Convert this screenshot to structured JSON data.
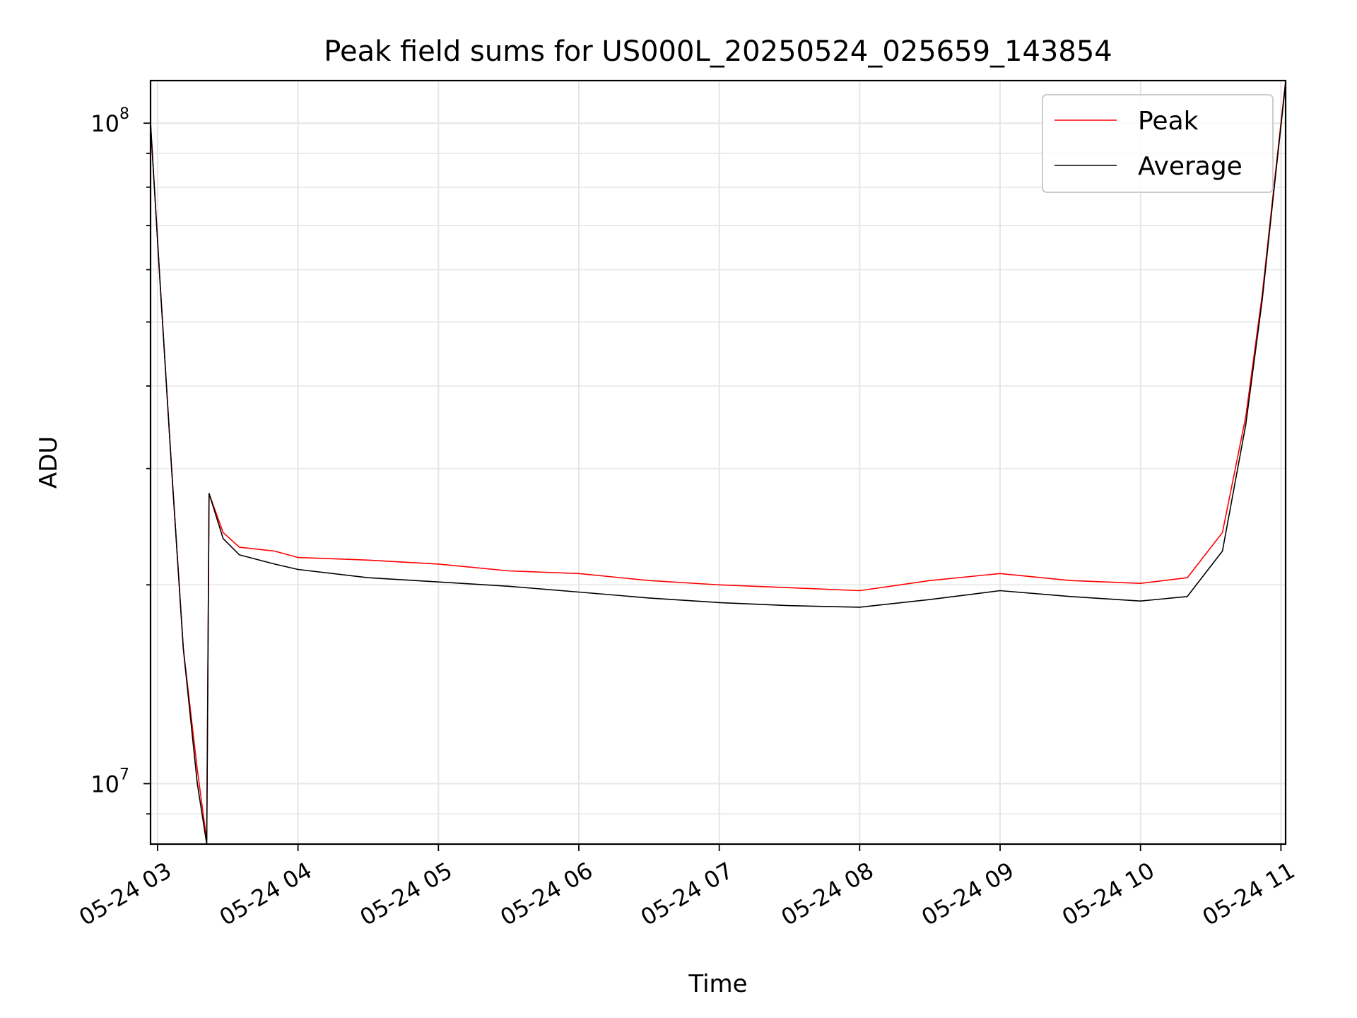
{
  "chart_data": {
    "type": "line",
    "title": "Peak field sums for US000L_20250524_025659_143854",
    "xlabel": "Time",
    "ylabel": "ADU",
    "xlim": [
      "2025-05-24 02:57",
      "2025-05-24 11:02"
    ],
    "ylim": [
      8100000,
      116000000
    ],
    "yscale": "log",
    "grid": true,
    "legend": {
      "location": "top-right"
    },
    "x_ticks": [
      "05-24 03",
      "05-24 04",
      "05-24 05",
      "05-24 06",
      "05-24 07",
      "05-24 08",
      "05-24 09",
      "05-24 10",
      "05-24 11"
    ],
    "y_ticks": [
      {
        "base": "10",
        "exp": "7",
        "value": 10000000
      },
      {
        "base": "10",
        "exp": "8",
        "value": 100000000
      }
    ],
    "series": [
      {
        "name": "Peak",
        "color": "#ff0000",
        "points": [
          [
            "2025-05-24 02:57",
            100000000
          ],
          [
            "2025-05-24 03:01",
            58000000
          ],
          [
            "2025-05-24 03:06",
            30000000
          ],
          [
            "2025-05-24 03:11",
            16000000
          ],
          [
            "2025-05-24 03:17",
            10500000
          ],
          [
            "2025-05-24 03:21",
            8200000
          ],
          [
            "2025-05-24 03:22",
            27500000
          ],
          [
            "2025-05-24 03:28",
            24000000
          ],
          [
            "2025-05-24 03:35",
            22800000
          ],
          [
            "2025-05-24 03:50",
            22500000
          ],
          [
            "2025-05-24 04:00",
            22000000
          ],
          [
            "2025-05-24 04:30",
            21800000
          ],
          [
            "2025-05-24 05:00",
            21500000
          ],
          [
            "2025-05-24 05:30",
            21000000
          ],
          [
            "2025-05-24 06:00",
            20800000
          ],
          [
            "2025-05-24 06:30",
            20300000
          ],
          [
            "2025-05-24 07:00",
            20000000
          ],
          [
            "2025-05-24 07:30",
            19800000
          ],
          [
            "2025-05-24 08:00",
            19600000
          ],
          [
            "2025-05-24 08:30",
            20300000
          ],
          [
            "2025-05-24 09:00",
            20800000
          ],
          [
            "2025-05-24 09:30",
            20300000
          ],
          [
            "2025-05-24 10:00",
            20100000
          ],
          [
            "2025-05-24 10:20",
            20500000
          ],
          [
            "2025-05-24 10:35",
            24000000
          ],
          [
            "2025-05-24 10:45",
            36000000
          ],
          [
            "2025-05-24 10:52",
            55000000
          ],
          [
            "2025-05-24 10:57",
            80000000
          ],
          [
            "2025-05-24 11:02",
            116000000
          ]
        ]
      },
      {
        "name": "Average",
        "color": "#000000",
        "points": [
          [
            "2025-05-24 02:57",
            100000000
          ],
          [
            "2025-05-24 03:01",
            58000000
          ],
          [
            "2025-05-24 03:06",
            30000000
          ],
          [
            "2025-05-24 03:11",
            16000000
          ],
          [
            "2025-05-24 03:17",
            10000000
          ],
          [
            "2025-05-24 03:21",
            8100000
          ],
          [
            "2025-05-24 03:22",
            27500000
          ],
          [
            "2025-05-24 03:28",
            23500000
          ],
          [
            "2025-05-24 03:35",
            22200000
          ],
          [
            "2025-05-24 03:50",
            21500000
          ],
          [
            "2025-05-24 04:00",
            21100000
          ],
          [
            "2025-05-24 04:30",
            20500000
          ],
          [
            "2025-05-24 05:00",
            20200000
          ],
          [
            "2025-05-24 05:30",
            19900000
          ],
          [
            "2025-05-24 06:00",
            19500000
          ],
          [
            "2025-05-24 06:30",
            19100000
          ],
          [
            "2025-05-24 07:00",
            18800000
          ],
          [
            "2025-05-24 07:30",
            18600000
          ],
          [
            "2025-05-24 08:00",
            18500000
          ],
          [
            "2025-05-24 08:30",
            19000000
          ],
          [
            "2025-05-24 09:00",
            19600000
          ],
          [
            "2025-05-24 09:30",
            19200000
          ],
          [
            "2025-05-24 10:00",
            18900000
          ],
          [
            "2025-05-24 10:20",
            19200000
          ],
          [
            "2025-05-24 10:35",
            22500000
          ],
          [
            "2025-05-24 10:45",
            35000000
          ],
          [
            "2025-05-24 10:52",
            54000000
          ],
          [
            "2025-05-24 10:57",
            79000000
          ],
          [
            "2025-05-24 11:02",
            115000000
          ]
        ]
      }
    ]
  }
}
